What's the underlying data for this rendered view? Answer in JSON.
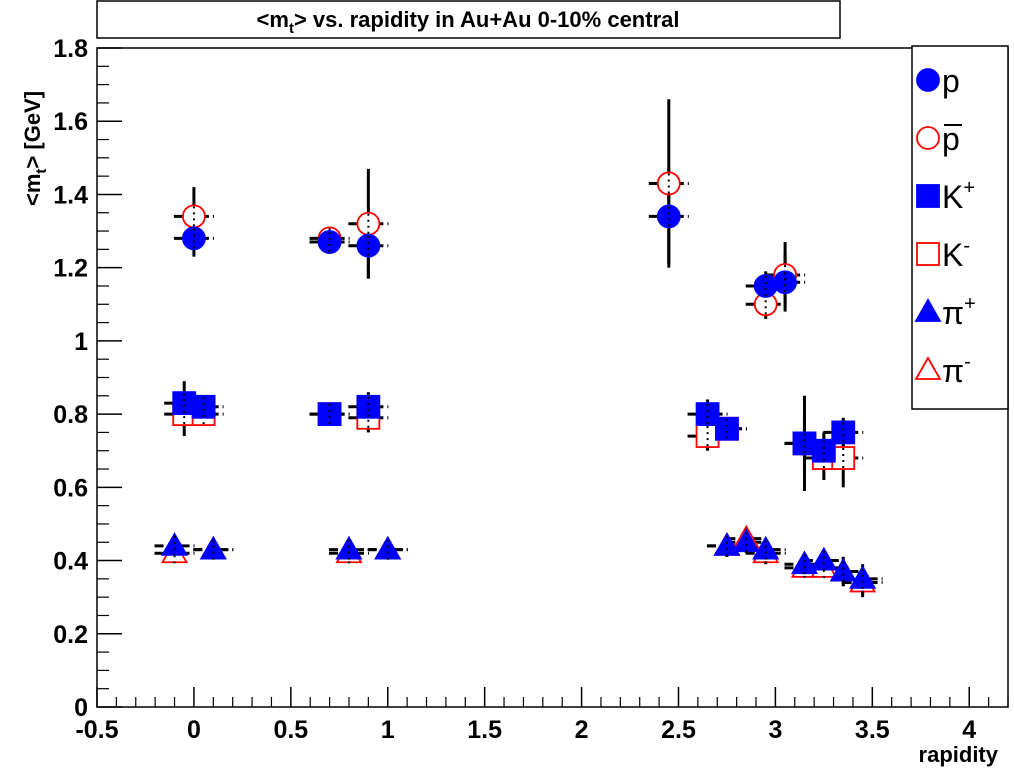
{
  "chart_data": {
    "type": "scatter",
    "title": "<m",
    "title_sub": "t",
    "title_rest": "> vs. rapidity in Au+Au 0-10% central",
    "xlabel": "rapidity",
    "ylabel": "<m",
    "ylabel_sub": "t",
    "ylabel_rest": "> [GeV]",
    "xlim": [
      -0.5,
      4.2
    ],
    "ylim": [
      0,
      1.8
    ],
    "x_ticks": [
      -0.5,
      0,
      0.5,
      1,
      1.5,
      2,
      2.5,
      3,
      3.5,
      4
    ],
    "x_tick_labels": [
      "-0.5",
      "0",
      "0.5",
      "1",
      "1.5",
      "2",
      "2.5",
      "3",
      "3.5",
      "4"
    ],
    "y_ticks": [
      0,
      0.2,
      0.4,
      0.6,
      0.8,
      1,
      1.2,
      1.4,
      1.6,
      1.8
    ],
    "y_tick_labels": [
      "0",
      "0.2",
      "0.4",
      "0.6",
      "0.8",
      "1",
      "1.2",
      "1.4",
      "1.6",
      "1.8"
    ],
    "grid": false,
    "legend_position": "top-right",
    "series": [
      {
        "name": "p",
        "legend_main": "p",
        "legend_sup": "",
        "legend_bar": false,
        "marker": "circle",
        "filled": true,
        "color": "#0000ff",
        "edge": "#0000ff",
        "points": [
          {
            "x": 0.0,
            "y": 1.28,
            "err": 0.05
          },
          {
            "x": 0.7,
            "y": 1.27,
            "err": 0.02
          },
          {
            "x": 0.9,
            "y": 1.26,
            "err": 0.09
          },
          {
            "x": 2.45,
            "y": 1.34,
            "err": 0.13
          },
          {
            "x": 2.95,
            "y": 1.15,
            "err": 0.04
          },
          {
            "x": 3.05,
            "y": 1.16,
            "err": 0.08
          }
        ]
      },
      {
        "name": "p̄",
        "legend_main": "p",
        "legend_sup": "",
        "legend_bar": true,
        "marker": "circle",
        "filled": false,
        "color": "#ffffff",
        "edge": "#ff0000",
        "points": [
          {
            "x": 0.0,
            "y": 1.34,
            "err": 0.08
          },
          {
            "x": 0.7,
            "y": 1.28,
            "err": 0.03
          },
          {
            "x": 0.9,
            "y": 1.32,
            "err": 0.15
          },
          {
            "x": 2.45,
            "y": 1.43,
            "err": 0.23
          },
          {
            "x": 2.95,
            "y": 1.1,
            "err": 0.04
          },
          {
            "x": 3.05,
            "y": 1.18,
            "err": 0.09
          }
        ]
      },
      {
        "name": "K+",
        "legend_main": "K",
        "legend_sup": "+",
        "legend_bar": false,
        "marker": "square",
        "filled": true,
        "color": "#0000ff",
        "edge": "#0000ff",
        "points": [
          {
            "x": -0.05,
            "y": 0.83,
            "err": 0.06
          },
          {
            "x": 0.05,
            "y": 0.82,
            "err": 0.03
          },
          {
            "x": 0.7,
            "y": 0.8,
            "err": 0.02
          },
          {
            "x": 0.9,
            "y": 0.82,
            "err": 0.04
          },
          {
            "x": 2.65,
            "y": 0.8,
            "err": 0.04
          },
          {
            "x": 2.75,
            "y": 0.76,
            "err": 0.03
          },
          {
            "x": 3.15,
            "y": 0.72,
            "err": 0.07
          },
          {
            "x": 3.25,
            "y": 0.7,
            "err": 0.05
          },
          {
            "x": 3.35,
            "y": 0.75,
            "err": 0.04
          }
        ]
      },
      {
        "name": "K-",
        "legend_main": "K",
        "legend_sup": "-",
        "legend_bar": false,
        "marker": "square",
        "filled": false,
        "color": "#ffffff",
        "edge": "#ff0000",
        "points": [
          {
            "x": -0.05,
            "y": 0.8,
            "err": 0.06
          },
          {
            "x": 0.05,
            "y": 0.8,
            "err": 0.03
          },
          {
            "x": 0.7,
            "y": 0.8,
            "err": 0.02
          },
          {
            "x": 0.9,
            "y": 0.79,
            "err": 0.04
          },
          {
            "x": 2.65,
            "y": 0.74,
            "err": 0.04
          },
          {
            "x": 2.75,
            "y": 0.76,
            "err": 0.03
          },
          {
            "x": 3.15,
            "y": 0.72,
            "err": 0.13
          },
          {
            "x": 3.25,
            "y": 0.68,
            "err": 0.06
          },
          {
            "x": 3.35,
            "y": 0.68,
            "err": 0.08
          }
        ]
      },
      {
        "name": "π+",
        "legend_main": "π",
        "legend_sup": "+",
        "legend_bar": false,
        "marker": "triangle",
        "filled": true,
        "color": "#0000ff",
        "edge": "#0000ff",
        "points": [
          {
            "x": -0.1,
            "y": 0.44,
            "err": 0.02
          },
          {
            "x": 0.1,
            "y": 0.43,
            "err": 0.01
          },
          {
            "x": 0.8,
            "y": 0.43,
            "err": 0.01
          },
          {
            "x": 1.0,
            "y": 0.43,
            "err": 0.01
          },
          {
            "x": 2.75,
            "y": 0.44,
            "err": 0.03
          },
          {
            "x": 2.85,
            "y": 0.45,
            "err": 0.03
          },
          {
            "x": 2.95,
            "y": 0.43,
            "err": 0.03
          },
          {
            "x": 3.15,
            "y": 0.39,
            "err": 0.02
          },
          {
            "x": 3.25,
            "y": 0.4,
            "err": 0.02
          },
          {
            "x": 3.35,
            "y": 0.37,
            "err": 0.04
          },
          {
            "x": 3.45,
            "y": 0.35,
            "err": 0.04
          }
        ]
      },
      {
        "name": "π-",
        "legend_main": "π",
        "legend_sup": "-",
        "legend_bar": false,
        "marker": "triangle",
        "filled": false,
        "color": "#ffffff",
        "edge": "#ff0000",
        "points": [
          {
            "x": -0.1,
            "y": 0.42,
            "err": 0.02
          },
          {
            "x": 0.1,
            "y": 0.43,
            "err": 0.01
          },
          {
            "x": 0.8,
            "y": 0.42,
            "err": 0.01
          },
          {
            "x": 1.0,
            "y": 0.43,
            "err": 0.01
          },
          {
            "x": 2.75,
            "y": 0.44,
            "err": 0.03
          },
          {
            "x": 2.85,
            "y": 0.46,
            "err": 0.03
          },
          {
            "x": 2.95,
            "y": 0.42,
            "err": 0.03
          },
          {
            "x": 3.15,
            "y": 0.38,
            "err": 0.02
          },
          {
            "x": 3.25,
            "y": 0.38,
            "err": 0.02
          },
          {
            "x": 3.35,
            "y": 0.37,
            "err": 0.04
          },
          {
            "x": 3.45,
            "y": 0.34,
            "err": 0.04
          }
        ]
      }
    ]
  }
}
